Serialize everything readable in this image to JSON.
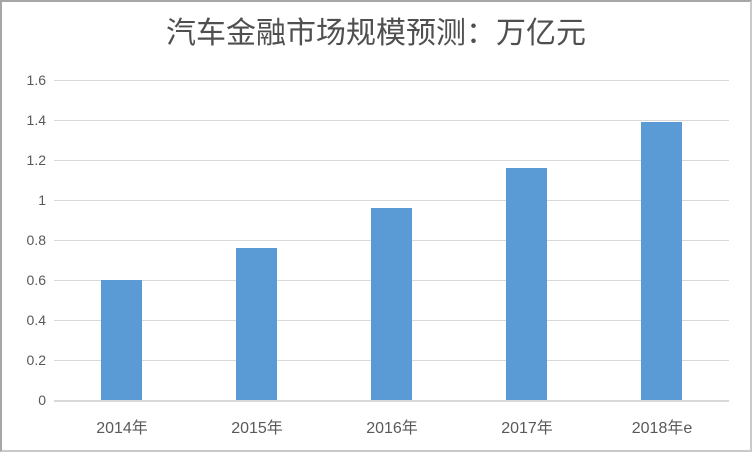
{
  "chart_data": {
    "type": "bar",
    "title": "汽车金融市场规模预测：万亿元",
    "categories": [
      "2014年",
      "2015年",
      "2016年",
      "2017年",
      "2018年e"
    ],
    "values": [
      0.6,
      0.76,
      0.96,
      1.16,
      1.39
    ],
    "xlabel": "",
    "ylabel": "",
    "ylim": [
      0,
      1.6
    ],
    "ytick_step": 0.2,
    "ytick_labels": [
      "0",
      "0.2",
      "0.4",
      "0.6",
      "0.8",
      "1",
      "1.2",
      "1.4",
      "1.6"
    ],
    "grid": true,
    "legend_position": "none",
    "colors": {
      "bar": "#5b9bd5",
      "gridline": "#d9d9d9",
      "axis_line": "#d9d9d9",
      "tick_text": "#595959",
      "title_text": "#4f4f4f",
      "background": "#ffffff"
    }
  }
}
